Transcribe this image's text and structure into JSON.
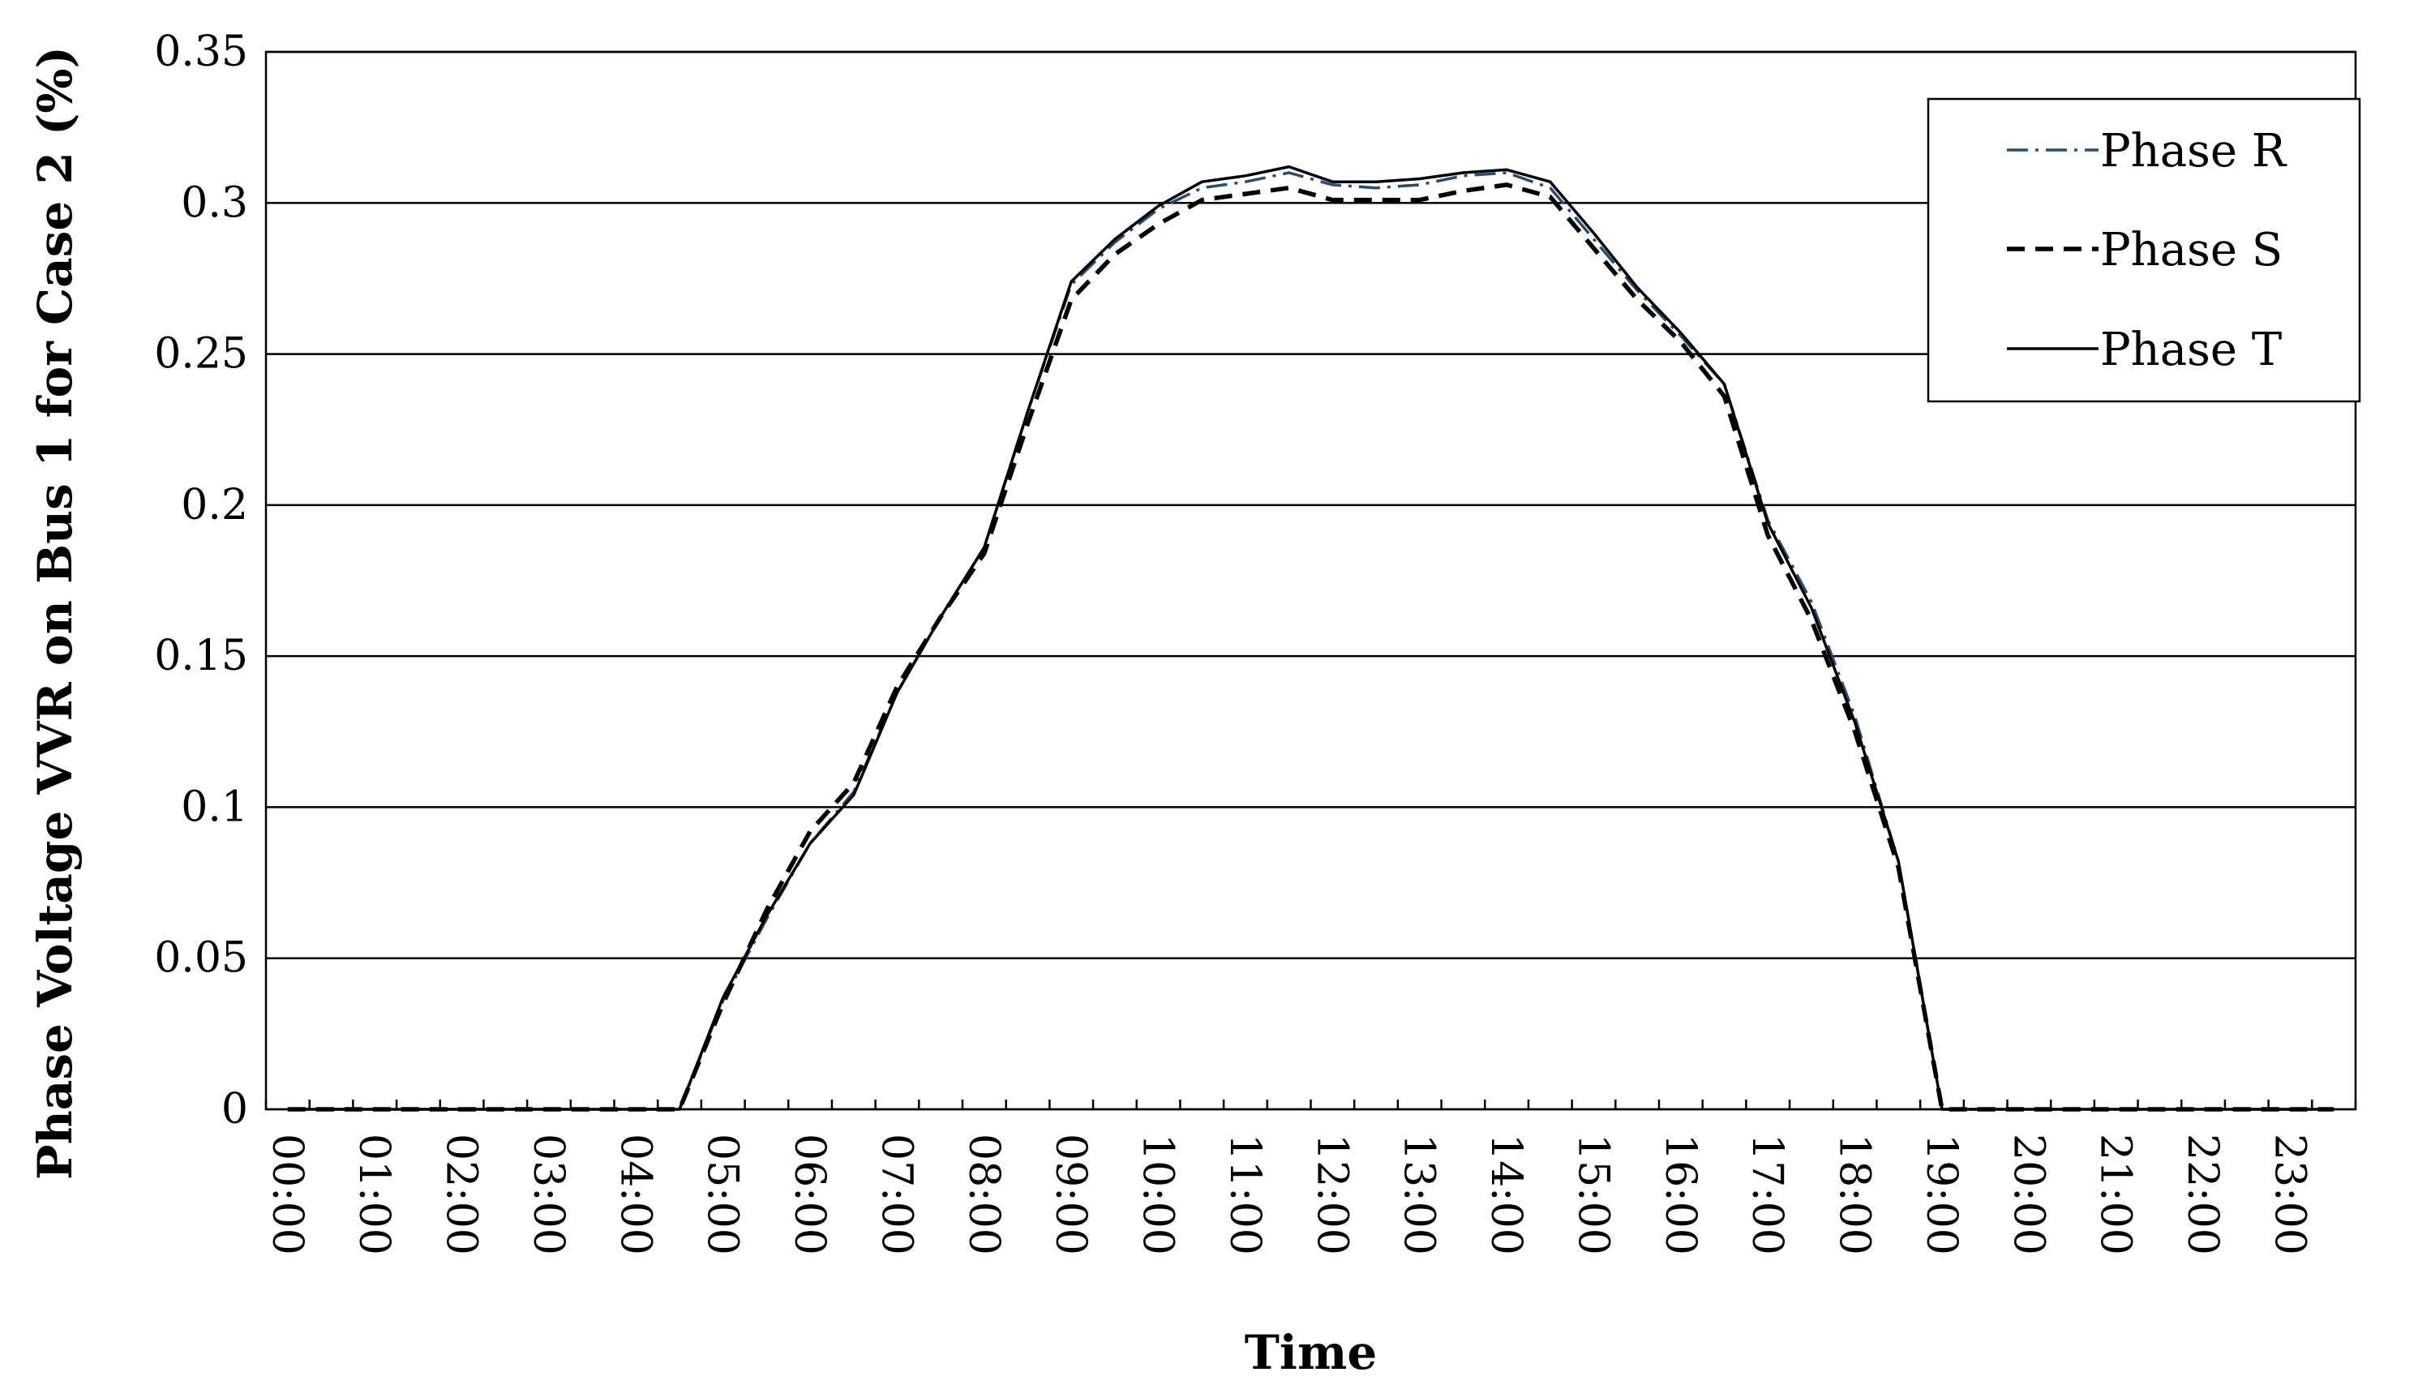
{
  "chart_data": {
    "type": "line",
    "title": "",
    "xlabel": "Time",
    "ylabel": "Phase Voltage VVR on  Bus 1 for Case 2 (%)",
    "ylim": [
      0,
      0.35
    ],
    "yticks": [
      "0",
      "0.05",
      "0.1",
      "0.15",
      "0.2",
      "0.25",
      "0.3",
      "0.35"
    ],
    "x_tick_labels": [
      "00:00",
      "01:00",
      "02:00",
      "03:00",
      "04:00",
      "05:00",
      "06:00",
      "07:00",
      "08:00",
      "09:00",
      "10:00",
      "11:00",
      "12:00",
      "13:00",
      "14:00",
      "15:00",
      "16:00",
      "17:00",
      "18:00",
      "19:00",
      "20:00",
      "21:00",
      "22:00",
      "23:00"
    ],
    "x": [
      "00:00",
      "00:30",
      "01:00",
      "01:30",
      "02:00",
      "02:30",
      "03:00",
      "03:30",
      "04:00",
      "04:30",
      "05:00",
      "05:30",
      "06:00",
      "06:30",
      "07:00",
      "07:30",
      "08:00",
      "08:30",
      "09:00",
      "09:30",
      "10:00",
      "10:30",
      "11:00",
      "11:30",
      "12:00",
      "12:30",
      "13:00",
      "13:30",
      "14:00",
      "14:30",
      "15:00",
      "15:30",
      "16:00",
      "16:30",
      "17:00",
      "17:30",
      "18:00",
      "18:30",
      "19:00",
      "19:30",
      "20:00",
      "20:30",
      "21:00",
      "21:30",
      "22:00",
      "22:30",
      "23:00",
      "23:30"
    ],
    "grid": "horizontal",
    "legend_position": "top-right",
    "series": [
      {
        "name": "Phase R",
        "color": "#1f4e79",
        "style": "dash-dot",
        "values": [
          0,
          0,
          0,
          0,
          0,
          0,
          0,
          0,
          0,
          0,
          0.036,
          0.063,
          0.088,
          0.105,
          0.138,
          0.163,
          0.186,
          0.231,
          0.273,
          0.287,
          0.298,
          0.305,
          0.307,
          0.31,
          0.306,
          0.305,
          0.306,
          0.309,
          0.31,
          0.305,
          0.288,
          0.271,
          0.256,
          0.24,
          0.195,
          0.168,
          0.13,
          0.082,
          0,
          0,
          0,
          0,
          0,
          0,
          0,
          0,
          0,
          0
        ]
      },
      {
        "name": "Phase S",
        "color": "#000000",
        "style": "dashed",
        "values": [
          0,
          0,
          0,
          0,
          0,
          0,
          0,
          0,
          0,
          0,
          0.035,
          0.066,
          0.092,
          0.108,
          0.14,
          0.163,
          0.184,
          0.227,
          0.268,
          0.283,
          0.293,
          0.301,
          0.303,
          0.305,
          0.301,
          0.301,
          0.301,
          0.304,
          0.306,
          0.302,
          0.285,
          0.268,
          0.254,
          0.236,
          0.19,
          0.162,
          0.125,
          0.08,
          0,
          0,
          0,
          0,
          0,
          0,
          0,
          0,
          0,
          0
        ]
      },
      {
        "name": "Phase T",
        "color": "#000000",
        "style": "solid",
        "values": [
          0,
          0,
          0,
          0,
          0,
          0,
          0,
          0,
          0,
          0,
          0.037,
          0.064,
          0.088,
          0.104,
          0.138,
          0.163,
          0.186,
          0.231,
          0.274,
          0.288,
          0.299,
          0.307,
          0.309,
          0.312,
          0.307,
          0.307,
          0.308,
          0.31,
          0.311,
          0.307,
          0.29,
          0.272,
          0.257,
          0.24,
          0.194,
          0.166,
          0.128,
          0.082,
          0,
          0,
          0,
          0,
          0,
          0,
          0,
          0,
          0,
          0
        ]
      }
    ]
  }
}
